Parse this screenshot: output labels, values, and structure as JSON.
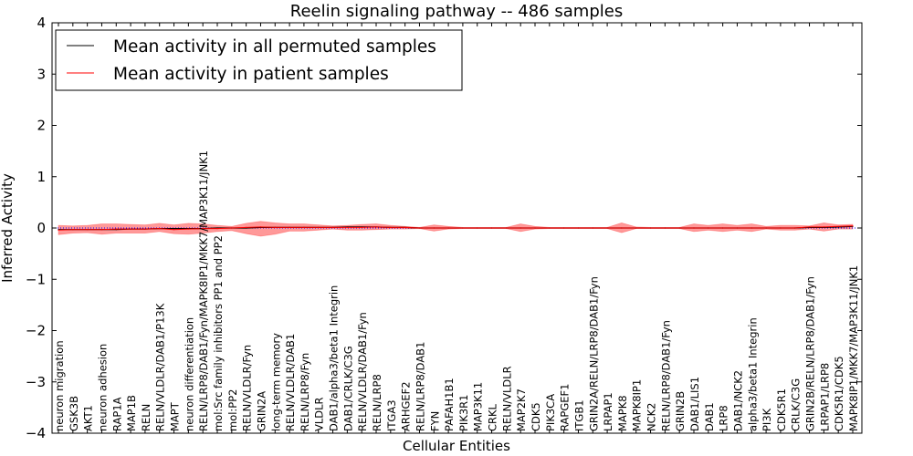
{
  "chart_data": {
    "type": "line",
    "title": "Reelin signaling pathway -- 486 samples",
    "xlabel": "Cellular Entities",
    "ylabel": "Inferred Activity",
    "ylim": [
      -4,
      4
    ],
    "yticks": [
      -4,
      -3,
      -2,
      -1,
      0,
      1,
      2,
      3,
      4
    ],
    "ytick_labels": [
      "−4",
      "−3",
      "−2",
      "−1",
      "0",
      "1",
      "2",
      "3",
      "4"
    ],
    "legend_position": "top-left",
    "categories": [
      "neuron migration",
      "GSK3B",
      "AKT1",
      "neuron adhesion",
      "RAP1A",
      "MAP1B",
      "RELN",
      "RELN/VLDLR/DAB1/P13K",
      "MAPT",
      "neuron differentiation",
      "RELN/LRP8/DAB1/Fyn/MAPK8IP1/MKK7/MAP3K11/JNK1",
      "mol:Src family inhibitors PP1 and PP2",
      "mol:PP2",
      "RELN/VLDLR/Fyn",
      "GRIN2A",
      "long-term memory",
      "RELN/VLDLR/DAB1",
      "RELN/LRP8/Fyn",
      "VLDLR",
      "DAB1/alpha3/beta1 Integrin",
      "DAB1/CRLK/C3G",
      "RELN/VLDLR/DAB1/Fyn",
      "RELN/LRP8",
      "ITGA3",
      "ARHGEF2",
      "RELN/LRP8/DAB1",
      "FYN",
      "PAFAH1B1",
      "PIK3R1",
      "MAP3K11",
      "CRKL",
      "RELN/VLDLR",
      "MAP2K7",
      "CDK5",
      "PIK3CA",
      "RAPGEF1",
      "ITGB1",
      "GRIN2A/RELN/LRP8/DAB1/Fyn",
      "LRPAP1",
      "MAPK8",
      "MAPK8IP1",
      "NCK2",
      "RELN/LRP8/DAB1/Fyn",
      "GRIN2B",
      "DAB1/LIS1",
      "DAB1",
      "LRP8",
      "DAB1/NCK2",
      "alpha3/beta1 Integrin",
      "PI3K",
      "CDK5R1",
      "CRLK/C3G",
      "GRIN2B/RELN/LRP8/DAB1/Fyn",
      "LRPAP1/LRP8",
      "CDK5R1/CDK5",
      "MAPK8IP1/MKK7/MAP3K11/JNK1"
    ],
    "series": [
      {
        "name": "Mean activity in all permuted samples",
        "color": "#000000",
        "values": [
          -0.03,
          -0.03,
          -0.03,
          -0.03,
          -0.03,
          -0.02,
          -0.02,
          -0.01,
          -0.01,
          -0.01,
          -0.01,
          0,
          0,
          0,
          0.01,
          0.01,
          0.01,
          0.01,
          0.01,
          0.01,
          0.02,
          0.02,
          0.02,
          0.01,
          0.01,
          0,
          0,
          0,
          0,
          0,
          0,
          0,
          0,
          0,
          0,
          0,
          0,
          0,
          0,
          0,
          0,
          0,
          0,
          0,
          0,
          0,
          0,
          0,
          0,
          0,
          0,
          0,
          0.01,
          0.01,
          0.02,
          0.03
        ]
      },
      {
        "name": "Mean activity in patient samples",
        "color": "#ff0000",
        "values": [
          -0.04,
          -0.03,
          -0.03,
          -0.03,
          -0.02,
          -0.02,
          -0.02,
          -0.01,
          -0.03,
          -0.02,
          -0.01,
          -0.01,
          0,
          0.01,
          0.02,
          0.01,
          0.01,
          0.01,
          0.01,
          0.01,
          0.01,
          0.01,
          0.02,
          0.01,
          0.01,
          0,
          0,
          0,
          0,
          0,
          0,
          0,
          0,
          0,
          0,
          0,
          0,
          0,
          0,
          0,
          0,
          0,
          0,
          0,
          0,
          0,
          0,
          0,
          0,
          0,
          0,
          0,
          0.02,
          0.02,
          0.03,
          0.04
        ]
      }
    ],
    "band": {
      "name": "patient spread",
      "color": "#ff0000",
      "upper": [
        0.05,
        0.04,
        0.05,
        0.08,
        0.08,
        0.07,
        0.06,
        0.09,
        0.06,
        0.09,
        0.08,
        0.05,
        0.03,
        0.09,
        0.13,
        0.1,
        0.08,
        0.08,
        0.06,
        0.04,
        0.05,
        0.07,
        0.08,
        0.05,
        0.03,
        0.01,
        0.06,
        0.03,
        0.01,
        0.01,
        0.01,
        0.01,
        0.08,
        0.03,
        0.01,
        0.01,
        0.01,
        0.01,
        0.01,
        0.1,
        0.02,
        0.01,
        0.01,
        0.01,
        0.08,
        0.05,
        0.08,
        0.05,
        0.08,
        0.03,
        0.05,
        0.05,
        0.04,
        0.1,
        0.06,
        0.07
      ],
      "lower": [
        -0.13,
        -0.1,
        -0.09,
        -0.12,
        -0.1,
        -0.1,
        -0.1,
        -0.07,
        -0.11,
        -0.12,
        -0.1,
        -0.07,
        -0.05,
        -0.11,
        -0.16,
        -0.12,
        -0.06,
        -0.06,
        -0.04,
        -0.02,
        -0.04,
        -0.04,
        -0.03,
        -0.02,
        -0.02,
        -0.01,
        -0.06,
        -0.02,
        -0.01,
        -0.01,
        -0.01,
        -0.01,
        -0.07,
        -0.02,
        -0.01,
        -0.01,
        -0.01,
        -0.01,
        -0.01,
        -0.09,
        -0.01,
        -0.01,
        -0.01,
        -0.01,
        -0.07,
        -0.04,
        -0.07,
        -0.04,
        -0.07,
        -0.02,
        -0.04,
        -0.04,
        -0.02,
        -0.06,
        -0.02,
        -0.02
      ]
    },
    "zero_line": {
      "value": 0,
      "style": "dotted",
      "color": "#0000ff"
    }
  }
}
